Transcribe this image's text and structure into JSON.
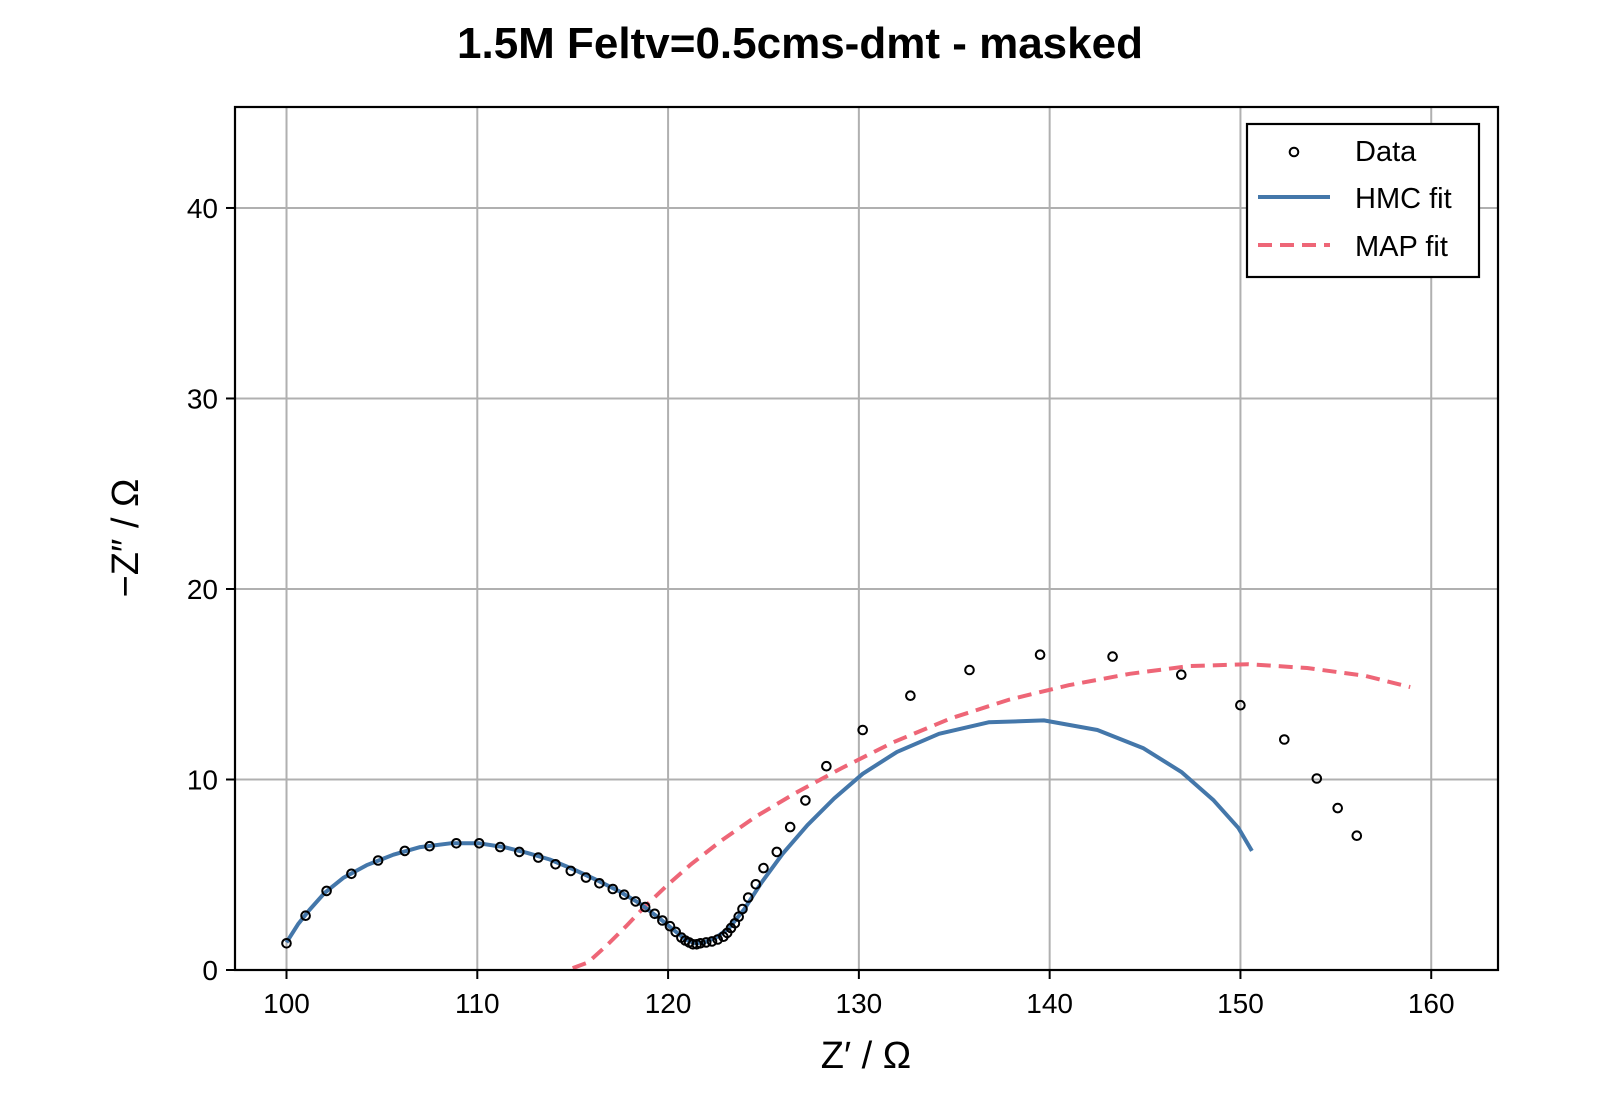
{
  "chart_data": {
    "type": "scatter",
    "title": "1.5M Feltv=0.5cms-dmt - masked",
    "xlabel": "Z′ / Ω",
    "ylabel": "−Z″ / Ω",
    "xlim": [
      97.3,
      163.5
    ],
    "ylim": [
      0,
      45.3
    ],
    "xticks": [
      100,
      110,
      120,
      130,
      140,
      150,
      160
    ],
    "yticks": [
      0,
      10,
      20,
      30,
      40
    ],
    "grid": true,
    "legend_position": "top-right",
    "colors": {
      "data_edge": "#000000",
      "hmc": "#4477aa",
      "map": "#ee6677"
    },
    "series": [
      {
        "name": "Data",
        "kind": "markers",
        "points": [
          [
            100.0,
            1.4
          ],
          [
            101.0,
            2.85
          ],
          [
            102.1,
            4.15
          ],
          [
            103.4,
            5.05
          ],
          [
            104.8,
            5.75
          ],
          [
            106.2,
            6.25
          ],
          [
            107.5,
            6.5
          ],
          [
            108.9,
            6.65
          ],
          [
            110.1,
            6.65
          ],
          [
            111.2,
            6.45
          ],
          [
            112.2,
            6.2
          ],
          [
            113.2,
            5.9
          ],
          [
            114.1,
            5.55
          ],
          [
            114.9,
            5.2
          ],
          [
            115.7,
            4.85
          ],
          [
            116.4,
            4.55
          ],
          [
            117.1,
            4.25
          ],
          [
            117.7,
            3.95
          ],
          [
            118.3,
            3.6
          ],
          [
            118.8,
            3.3
          ],
          [
            119.3,
            2.95
          ],
          [
            119.7,
            2.6
          ],
          [
            120.1,
            2.3
          ],
          [
            120.4,
            2.0
          ],
          [
            120.7,
            1.7
          ],
          [
            120.9,
            1.55
          ],
          [
            121.1,
            1.45
          ],
          [
            121.3,
            1.35
          ],
          [
            121.5,
            1.35
          ],
          [
            121.7,
            1.4
          ],
          [
            122.0,
            1.45
          ],
          [
            122.3,
            1.5
          ],
          [
            122.6,
            1.6
          ],
          [
            122.9,
            1.75
          ],
          [
            123.1,
            1.95
          ],
          [
            123.3,
            2.2
          ],
          [
            123.5,
            2.45
          ],
          [
            123.7,
            2.8
          ],
          [
            123.9,
            3.2
          ],
          [
            124.2,
            3.8
          ],
          [
            124.6,
            4.5
          ],
          [
            125.0,
            5.35
          ],
          [
            125.7,
            6.2
          ],
          [
            126.4,
            7.5
          ],
          [
            127.2,
            8.9
          ],
          [
            128.3,
            10.7
          ],
          [
            130.2,
            12.6
          ],
          [
            132.7,
            14.4
          ],
          [
            135.8,
            15.75
          ],
          [
            139.5,
            16.55
          ],
          [
            143.3,
            16.45
          ],
          [
            146.9,
            15.5
          ],
          [
            150.0,
            13.9
          ],
          [
            152.3,
            12.1
          ],
          [
            154.0,
            10.05
          ],
          [
            155.1,
            8.5
          ],
          [
            156.1,
            7.05
          ]
        ]
      },
      {
        "name": "HMC fit",
        "kind": "line",
        "points": [
          [
            100.0,
            1.45
          ],
          [
            100.6,
            2.4
          ],
          [
            101.2,
            3.15
          ],
          [
            102.0,
            4.05
          ],
          [
            103.0,
            4.85
          ],
          [
            104.2,
            5.5
          ],
          [
            105.6,
            6.05
          ],
          [
            107.0,
            6.45
          ],
          [
            108.6,
            6.65
          ],
          [
            110.1,
            6.65
          ],
          [
            111.4,
            6.45
          ],
          [
            112.6,
            6.15
          ],
          [
            113.8,
            5.8
          ],
          [
            115.0,
            5.3
          ],
          [
            116.2,
            4.75
          ],
          [
            117.4,
            4.15
          ],
          [
            118.5,
            3.5
          ],
          [
            119.5,
            2.75
          ],
          [
            120.3,
            2.1
          ],
          [
            120.9,
            1.6
          ],
          [
            121.4,
            1.4
          ],
          [
            121.9,
            1.45
          ],
          [
            122.5,
            1.7
          ],
          [
            123.2,
            2.2
          ],
          [
            124.0,
            3.2
          ],
          [
            124.9,
            4.6
          ],
          [
            126.0,
            6.1
          ],
          [
            127.3,
            7.6
          ],
          [
            128.7,
            9.0
          ],
          [
            130.2,
            10.3
          ],
          [
            132.0,
            11.45
          ],
          [
            134.2,
            12.4
          ],
          [
            136.8,
            13.0
          ],
          [
            139.7,
            13.1
          ],
          [
            142.5,
            12.6
          ],
          [
            144.9,
            11.65
          ],
          [
            146.9,
            10.4
          ],
          [
            148.6,
            8.9
          ],
          [
            149.9,
            7.45
          ],
          [
            150.6,
            6.25
          ]
        ]
      },
      {
        "name": "MAP fit",
        "kind": "dashed-line",
        "points": [
          [
            115.0,
            0.1
          ],
          [
            115.8,
            0.4
          ],
          [
            116.8,
            1.3
          ],
          [
            117.8,
            2.3
          ],
          [
            118.8,
            3.35
          ],
          [
            119.9,
            4.4
          ],
          [
            121.2,
            5.55
          ],
          [
            122.8,
            6.8
          ],
          [
            124.6,
            8.05
          ],
          [
            126.7,
            9.3
          ],
          [
            129.1,
            10.6
          ],
          [
            131.8,
            11.95
          ],
          [
            134.8,
            13.2
          ],
          [
            137.9,
            14.2
          ],
          [
            141.0,
            14.95
          ],
          [
            144.2,
            15.55
          ],
          [
            147.3,
            15.95
          ],
          [
            150.4,
            16.05
          ],
          [
            153.5,
            15.85
          ],
          [
            156.5,
            15.45
          ],
          [
            158.9,
            14.85
          ]
        ]
      }
    ]
  }
}
